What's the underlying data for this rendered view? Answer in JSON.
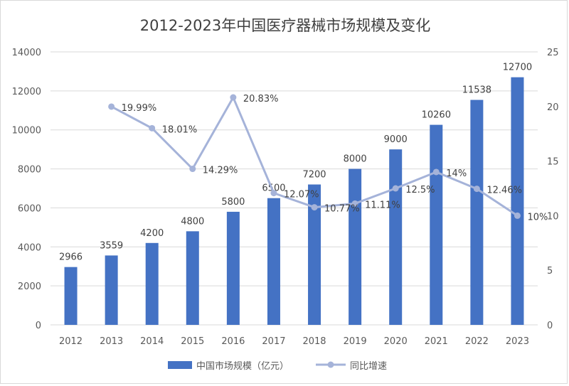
{
  "chart_data": {
    "type": "bar",
    "title": "2012-2023年中国医疗器械市场规模及变化",
    "categories": [
      "2012",
      "2013",
      "2014",
      "2015",
      "2016",
      "2017",
      "2018",
      "2019",
      "2020",
      "2021",
      "2022",
      "2023"
    ],
    "series": [
      {
        "name": "中国市场规模（亿元）",
        "type": "bar",
        "axis": "left",
        "color": "#4472c4",
        "values": [
          2966,
          3559,
          4200,
          4800,
          5800,
          6500,
          7200,
          8000,
          9000,
          10260,
          11538,
          12700
        ],
        "labels": [
          "2966",
          "3559",
          "4200",
          "4800",
          "5800",
          "6500",
          "7200",
          "8000",
          "9000",
          "10260",
          "11538",
          "12700"
        ]
      },
      {
        "name": "同比增速",
        "type": "line",
        "axis": "right",
        "color": "#a5b3d9",
        "values": [
          null,
          19.99,
          18.01,
          14.29,
          20.83,
          12.07,
          10.77,
          11.11,
          12.5,
          14,
          12.46,
          10
        ],
        "labels": [
          "",
          "19.99%",
          "18.01%",
          "14.29%",
          "20.83%",
          "12.07%",
          "10.77%",
          "11.11%",
          "12.5%",
          "14%",
          "12.46%",
          "10%"
        ]
      }
    ],
    "y_left": {
      "min": 0,
      "max": 14000,
      "step": 2000,
      "ticks": [
        "0",
        "2000",
        "4000",
        "6000",
        "8000",
        "10000",
        "12000",
        "14000"
      ]
    },
    "y_right": {
      "min": 0,
      "max": 25,
      "step": 5,
      "ticks": [
        "0",
        "5",
        "10",
        "15",
        "20",
        "25"
      ]
    },
    "grid": true,
    "legend_position": "bottom"
  }
}
